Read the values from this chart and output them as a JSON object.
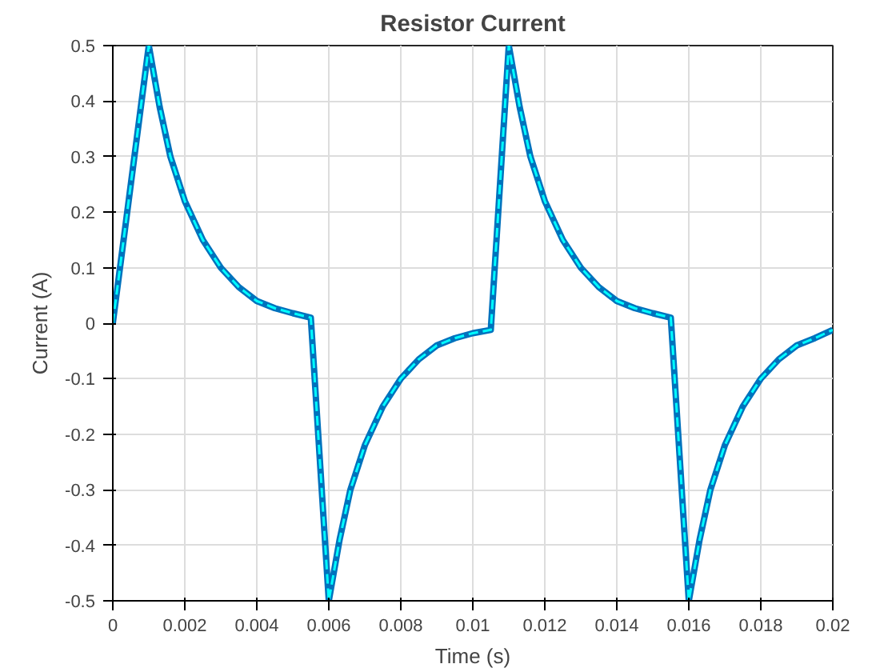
{
  "chart_data": {
    "type": "line",
    "title": "Resistor Current",
    "xlabel": "Time (s)",
    "ylabel": "Current (A)",
    "x": [
      0,
      0.001,
      0.0013,
      0.0016,
      0.002,
      0.0025,
      0.003,
      0.0035,
      0.004,
      0.0045,
      0.005,
      0.0055,
      0.006,
      0.0063,
      0.0066,
      0.007,
      0.0075,
      0.008,
      0.0085,
      0.009,
      0.0095,
      0.01,
      0.0105,
      0.011,
      0.0113,
      0.0116,
      0.012,
      0.0125,
      0.013,
      0.0135,
      0.014,
      0.0145,
      0.015,
      0.0155,
      0.016,
      0.0163,
      0.0166,
      0.017,
      0.0175,
      0.018,
      0.0185,
      0.019,
      0.0195,
      0.02
    ],
    "series": [
      {
        "color": "#0072bd",
        "line_style": "solid",
        "values": [
          0,
          0.5,
          0.39,
          0.3,
          0.22,
          0.15,
          0.1,
          0.065,
          0.04,
          0.027,
          0.018,
          0.01,
          -0.5,
          -0.39,
          -0.3,
          -0.22,
          -0.15,
          -0.1,
          -0.065,
          -0.04,
          -0.027,
          -0.018,
          -0.012,
          0.5,
          0.39,
          0.3,
          0.22,
          0.15,
          0.1,
          0.065,
          0.04,
          0.027,
          0.018,
          0.01,
          -0.5,
          -0.39,
          -0.3,
          -0.22,
          -0.15,
          -0.1,
          -0.065,
          -0.04,
          -0.027,
          -0.012
        ]
      },
      {
        "color": "#00ffff",
        "line_style": "dashed",
        "values": [
          0,
          0.5,
          0.39,
          0.3,
          0.22,
          0.15,
          0.1,
          0.065,
          0.04,
          0.027,
          0.018,
          0.01,
          -0.5,
          -0.39,
          -0.3,
          -0.22,
          -0.15,
          -0.1,
          -0.065,
          -0.04,
          -0.027,
          -0.018,
          -0.012,
          0.5,
          0.39,
          0.3,
          0.22,
          0.15,
          0.1,
          0.065,
          0.04,
          0.027,
          0.018,
          0.01,
          -0.5,
          -0.39,
          -0.3,
          -0.22,
          -0.15,
          -0.1,
          -0.065,
          -0.04,
          -0.027,
          -0.012
        ]
      }
    ],
    "xlim": [
      0,
      0.02
    ],
    "xticks": [
      0,
      0.002,
      0.004,
      0.006,
      0.008,
      0.01,
      0.012,
      0.014,
      0.016,
      0.018,
      0.02
    ],
    "ylim": [
      -0.5,
      0.5
    ],
    "yticks": [
      -0.5,
      -0.4,
      -0.3,
      -0.2,
      -0.1,
      0,
      0.1,
      0.2,
      0.3,
      0.4,
      0.5
    ],
    "grid": true,
    "marker": "none"
  }
}
